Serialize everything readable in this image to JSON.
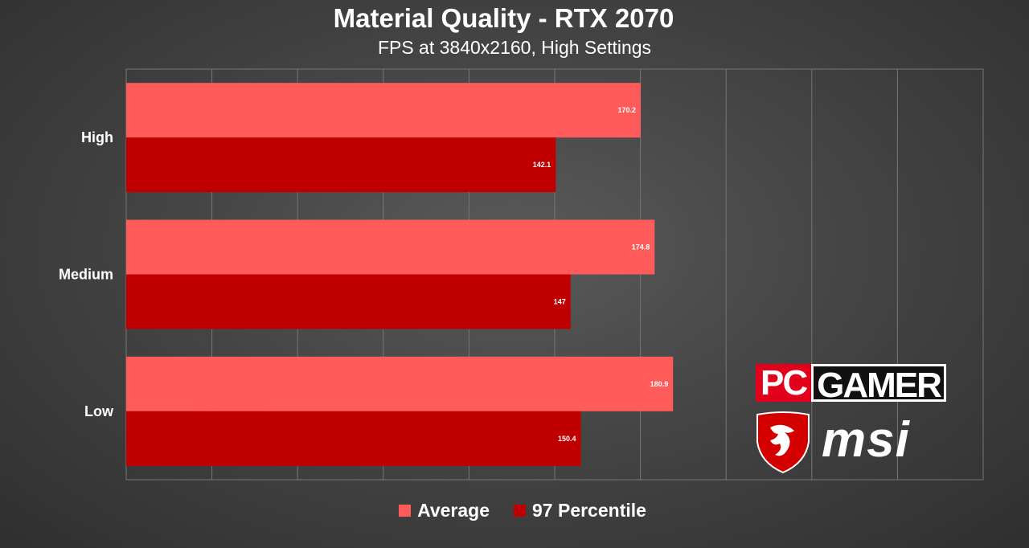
{
  "chart_data": {
    "type": "bar",
    "orientation": "horizontal",
    "title": "Material Quality - RTX 2070",
    "subtitle": "FPS at 3840x2160, High Settings",
    "categories": [
      "High",
      "Medium",
      "Low"
    ],
    "series": [
      {
        "name": "Average",
        "values": [
          170.2,
          174.8,
          180.9
        ],
        "color": "#ff5b5b"
      },
      {
        "name": "97 Percentile",
        "values": [
          142.1,
          147,
          150.4
        ],
        "color": "#c00000"
      }
    ],
    "xlim": [
      0,
      283.5
    ],
    "grid": true,
    "legend": "bottom-center"
  },
  "logos": {
    "pc": "PC",
    "gamer": "GAMER",
    "msi": "msi"
  }
}
